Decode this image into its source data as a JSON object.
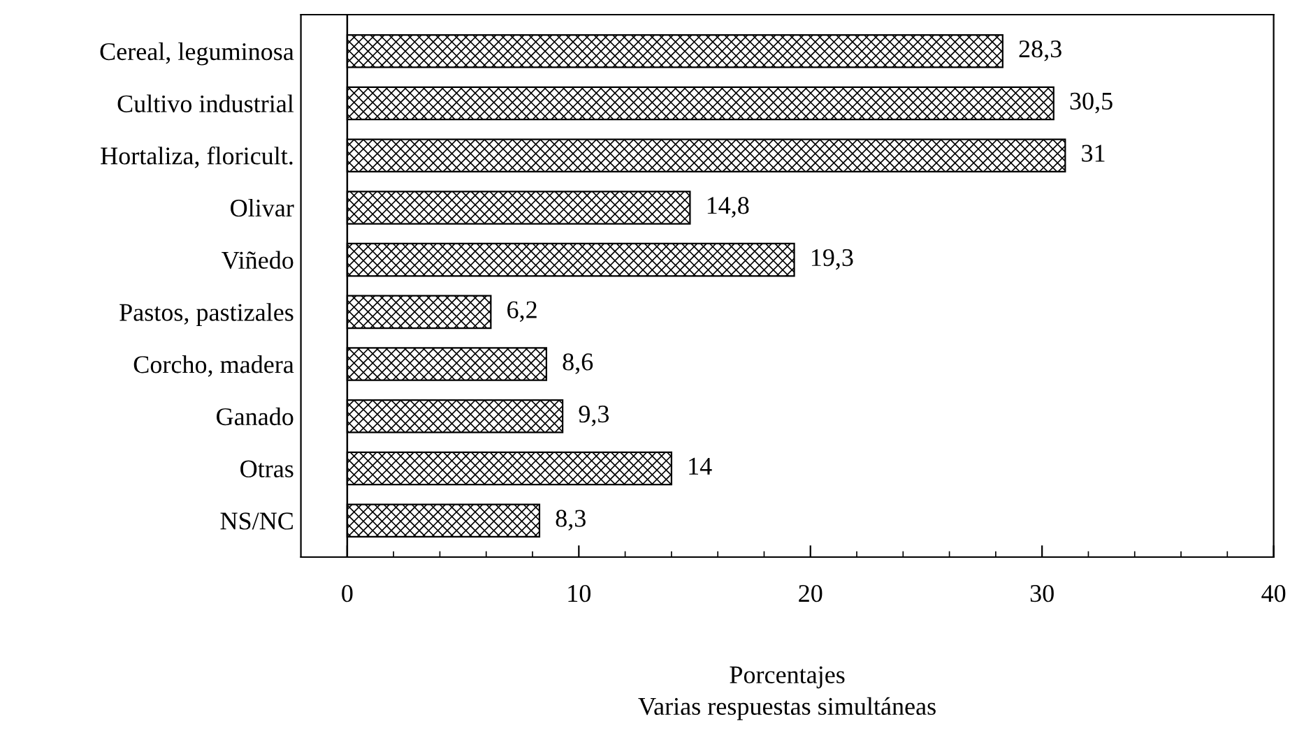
{
  "chart_data": {
    "type": "bar",
    "orientation": "horizontal",
    "categories": [
      "Cereal, leguminosa",
      "Cultivo industrial",
      "Hortaliza, floricult.",
      "Olivar",
      "Viñedo",
      "Pastos, pastizales",
      "Corcho, madera",
      "Ganado",
      "Otras",
      "NS/NC"
    ],
    "values": [
      28.3,
      30.5,
      31,
      14.8,
      19.3,
      6.2,
      8.6,
      9.3,
      14,
      8.3
    ],
    "value_labels": [
      "28,3",
      "30,5",
      "31",
      "14,8",
      "19,3",
      "6,2",
      "8,6",
      "9,3",
      "14",
      "8,3"
    ],
    "color": "#000000",
    "xlim": [
      -2,
      40
    ],
    "xticks": [
      0,
      10,
      20,
      30,
      40
    ],
    "ref_lines": [
      {
        "axis": "x",
        "value": 0
      }
    ],
    "xlabel": "Porcentajes",
    "annotations": [
      "Varias respuestas simultáneas"
    ],
    "grid": false
  }
}
